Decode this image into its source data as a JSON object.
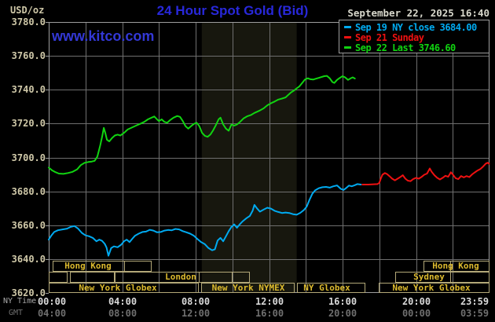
{
  "header": {
    "unit_label": "USD/oz",
    "datetime": "September 22, 2025 16:40"
  },
  "watermark": "www.kitco.com",
  "colors": {
    "background": "#000000",
    "title": "#2828da",
    "watermark": "#3338d6",
    "date_text": "#d8d8cc",
    "axis_text": "#cfc8a8",
    "grid": "#6f6f6f",
    "plot_border": "#9e9e9e",
    "shaded_band": "#17170e",
    "session_text": "#dcba2e",
    "session_border": "#b3a878",
    "ny_time_text": "#d9d9d9",
    "gmt_text": "#6f6f6f",
    "axis_row_label": "#a8a8a8"
  },
  "legend": {
    "items": [
      {
        "label": "Sep 19 NY close 3684.00",
        "color": "#00aaf0"
      },
      {
        "label": "Sep 21 Sunday",
        "color": "#ee1111"
      },
      {
        "label": "Sep 22 Last 3746.60",
        "color": "#11d411"
      }
    ]
  },
  "axes": {
    "y": {
      "unit": "USD/oz",
      "min": 3620,
      "max": 3780,
      "tick_step": 20,
      "tick_labels": [
        "3780.0",
        "3760.0",
        "3740.0",
        "3720.0",
        "3700.0",
        "3680.0",
        "3660.0",
        "3640.0",
        "3620.0"
      ]
    },
    "x": {
      "row1_label": "NY Time",
      "row2_label": "GMT",
      "tick_hours": [
        0,
        4,
        8,
        12,
        16,
        20,
        23.983
      ],
      "ny_labels": [
        "00:00",
        "04:00",
        "08:00",
        "12:00",
        "16:00",
        "20:00",
        "23:59"
      ],
      "gmt_labels": [
        "04:00",
        "08:00",
        "12:00",
        "16:00",
        "20:00",
        "00:00",
        "03:59"
      ],
      "grid_hour_step": 2
    }
  },
  "chart_data": {
    "type": "line",
    "title": "24 Hour Spot Gold (Bid)",
    "xlabel": "NY Time (hours 00:00-23:59)",
    "ylabel": "USD/oz",
    "xlim": [
      0,
      24
    ],
    "ylim": [
      3620,
      3780
    ],
    "grid": true,
    "legend_position": "top-right",
    "shaded_region": {
      "start_hour": 8.333,
      "end_hour": 13.5,
      "note": "New York NYMEX floor session"
    },
    "series": [
      {
        "name": "Sep 19 NY close 3684.00",
        "color": "#00aaf0",
        "points": [
          [
            0.0,
            3651.5
          ],
          [
            0.15,
            3654.0
          ],
          [
            0.3,
            3656.0
          ],
          [
            0.5,
            3657.0
          ],
          [
            0.75,
            3657.5
          ],
          [
            1.0,
            3658.0
          ],
          [
            1.2,
            3659.0
          ],
          [
            1.4,
            3659.5
          ],
          [
            1.6,
            3658.0
          ],
          [
            1.8,
            3655.5
          ],
          [
            2.0,
            3654.0
          ],
          [
            2.2,
            3653.5
          ],
          [
            2.4,
            3652.5
          ],
          [
            2.6,
            3650.5
          ],
          [
            2.75,
            3651.5
          ],
          [
            2.9,
            3650.8
          ],
          [
            3.05,
            3649.0
          ],
          [
            3.15,
            3646.8
          ],
          [
            3.25,
            3642.0
          ],
          [
            3.4,
            3646.5
          ],
          [
            3.55,
            3647.5
          ],
          [
            3.75,
            3647.0
          ],
          [
            3.95,
            3648.5
          ],
          [
            4.1,
            3650.5
          ],
          [
            4.25,
            3651.5
          ],
          [
            4.4,
            3650.0
          ],
          [
            4.55,
            3652.0
          ],
          [
            4.7,
            3653.8
          ],
          [
            4.9,
            3655.0
          ],
          [
            5.1,
            3656.0
          ],
          [
            5.3,
            3656.2
          ],
          [
            5.5,
            3657.3
          ],
          [
            5.7,
            3656.8
          ],
          [
            5.9,
            3655.8
          ],
          [
            6.1,
            3656.0
          ],
          [
            6.3,
            3656.8
          ],
          [
            6.5,
            3657.2
          ],
          [
            6.7,
            3657.0
          ],
          [
            6.9,
            3657.8
          ],
          [
            7.1,
            3657.5
          ],
          [
            7.3,
            3656.5
          ],
          [
            7.5,
            3655.8
          ],
          [
            7.7,
            3655.0
          ],
          [
            7.9,
            3653.8
          ],
          [
            8.1,
            3651.8
          ],
          [
            8.3,
            3650.0
          ],
          [
            8.5,
            3648.8
          ],
          [
            8.7,
            3646.5
          ],
          [
            8.9,
            3645.2
          ],
          [
            9.05,
            3645.8
          ],
          [
            9.2,
            3651.0
          ],
          [
            9.35,
            3652.5
          ],
          [
            9.5,
            3650.5
          ],
          [
            9.65,
            3653.5
          ],
          [
            9.8,
            3656.5
          ],
          [
            9.95,
            3659.0
          ],
          [
            10.1,
            3660.5
          ],
          [
            10.25,
            3658.5
          ],
          [
            10.4,
            3660.5
          ],
          [
            10.55,
            3662.2
          ],
          [
            10.75,
            3664.0
          ],
          [
            10.95,
            3665.5
          ],
          [
            11.1,
            3668.5
          ],
          [
            11.2,
            3672.0
          ],
          [
            11.35,
            3669.8
          ],
          [
            11.5,
            3668.0
          ],
          [
            11.7,
            3669.2
          ],
          [
            11.9,
            3670.3
          ],
          [
            12.1,
            3669.8
          ],
          [
            12.3,
            3668.5
          ],
          [
            12.5,
            3667.8
          ],
          [
            12.7,
            3667.2
          ],
          [
            12.9,
            3667.5
          ],
          [
            13.1,
            3667.2
          ],
          [
            13.3,
            3666.5
          ],
          [
            13.5,
            3666.2
          ],
          [
            13.7,
            3667.3
          ],
          [
            13.9,
            3669.0
          ],
          [
            14.05,
            3671.0
          ],
          [
            14.2,
            3675.0
          ],
          [
            14.35,
            3678.5
          ],
          [
            14.5,
            3680.5
          ],
          [
            14.7,
            3681.8
          ],
          [
            14.9,
            3682.4
          ],
          [
            15.1,
            3682.6
          ],
          [
            15.3,
            3682.2
          ],
          [
            15.5,
            3683.0
          ],
          [
            15.7,
            3683.5
          ],
          [
            15.9,
            3681.5
          ],
          [
            16.05,
            3680.8
          ],
          [
            16.2,
            3682.0
          ],
          [
            16.35,
            3683.4
          ],
          [
            16.5,
            3683.0
          ],
          [
            16.65,
            3683.6
          ],
          [
            16.8,
            3684.3
          ],
          [
            17.0,
            3684.0
          ]
        ]
      },
      {
        "name": "Sep 21 Sunday",
        "color": "#ee1111",
        "points": [
          [
            17.08,
            3684.0
          ],
          [
            17.4,
            3684.0
          ],
          [
            17.7,
            3684.2
          ],
          [
            17.9,
            3684.3
          ],
          [
            18.0,
            3685.0
          ],
          [
            18.08,
            3687.5
          ],
          [
            18.17,
            3689.8
          ],
          [
            18.3,
            3690.8
          ],
          [
            18.42,
            3690.2
          ],
          [
            18.55,
            3689.0
          ],
          [
            18.7,
            3687.5
          ],
          [
            18.85,
            3686.5
          ],
          [
            19.0,
            3687.5
          ],
          [
            19.15,
            3688.5
          ],
          [
            19.28,
            3689.5
          ],
          [
            19.42,
            3687.5
          ],
          [
            19.55,
            3686.3
          ],
          [
            19.7,
            3686.0
          ],
          [
            19.85,
            3687.3
          ],
          [
            20.0,
            3688.0
          ],
          [
            20.15,
            3687.5
          ],
          [
            20.3,
            3688.5
          ],
          [
            20.45,
            3689.8
          ],
          [
            20.6,
            3690.5
          ],
          [
            20.75,
            3693.5
          ],
          [
            20.85,
            3691.5
          ],
          [
            21.0,
            3689.5
          ],
          [
            21.15,
            3688.0
          ],
          [
            21.3,
            3687.0
          ],
          [
            21.45,
            3688.0
          ],
          [
            21.6,
            3689.2
          ],
          [
            21.75,
            3688.6
          ],
          [
            21.9,
            3691.3
          ],
          [
            22.0,
            3690.0
          ],
          [
            22.15,
            3687.8
          ],
          [
            22.3,
            3687.2
          ],
          [
            22.45,
            3689.0
          ],
          [
            22.6,
            3688.2
          ],
          [
            22.75,
            3689.0
          ],
          [
            22.9,
            3688.4
          ],
          [
            23.05,
            3690.0
          ],
          [
            23.2,
            3691.2
          ],
          [
            23.35,
            3692.3
          ],
          [
            23.5,
            3693.2
          ],
          [
            23.65,
            3694.6
          ],
          [
            23.8,
            3696.4
          ],
          [
            23.9,
            3696.9
          ],
          [
            23.98,
            3696.2
          ]
        ]
      },
      {
        "name": "Sep 22 Last 3746.60",
        "color": "#11d411",
        "points": [
          [
            0.0,
            3694.0
          ],
          [
            0.17,
            3692.5
          ],
          [
            0.33,
            3691.5
          ],
          [
            0.55,
            3690.5
          ],
          [
            0.8,
            3690.3
          ],
          [
            1.05,
            3690.8
          ],
          [
            1.3,
            3691.5
          ],
          [
            1.55,
            3693.0
          ],
          [
            1.75,
            3695.5
          ],
          [
            1.95,
            3696.8
          ],
          [
            2.15,
            3697.3
          ],
          [
            2.35,
            3697.6
          ],
          [
            2.5,
            3698.0
          ],
          [
            2.65,
            3700.5
          ],
          [
            2.8,
            3707.0
          ],
          [
            2.92,
            3713.0
          ],
          [
            3.0,
            3717.5
          ],
          [
            3.08,
            3714.5
          ],
          [
            3.17,
            3710.5
          ],
          [
            3.3,
            3709.5
          ],
          [
            3.45,
            3711.5
          ],
          [
            3.6,
            3713.0
          ],
          [
            3.75,
            3713.5
          ],
          [
            3.9,
            3713.0
          ],
          [
            4.1,
            3714.5
          ],
          [
            4.3,
            3716.5
          ],
          [
            4.55,
            3717.8
          ],
          [
            4.8,
            3719.0
          ],
          [
            5.0,
            3720.0
          ],
          [
            5.2,
            3721.0
          ],
          [
            5.4,
            3722.5
          ],
          [
            5.6,
            3723.5
          ],
          [
            5.75,
            3724.2
          ],
          [
            5.9,
            3722.5
          ],
          [
            6.0,
            3721.5
          ],
          [
            6.15,
            3722.5
          ],
          [
            6.3,
            3721.0
          ],
          [
            6.45,
            3720.5
          ],
          [
            6.6,
            3722.0
          ],
          [
            6.8,
            3723.5
          ],
          [
            7.0,
            3724.5
          ],
          [
            7.15,
            3724.0
          ],
          [
            7.3,
            3721.5
          ],
          [
            7.45,
            3718.5
          ],
          [
            7.6,
            3717.0
          ],
          [
            7.75,
            3718.5
          ],
          [
            7.9,
            3719.8
          ],
          [
            8.05,
            3720.5
          ],
          [
            8.2,
            3718.5
          ],
          [
            8.35,
            3714.5
          ],
          [
            8.5,
            3712.8
          ],
          [
            8.65,
            3712.2
          ],
          [
            8.8,
            3713.5
          ],
          [
            8.95,
            3716.0
          ],
          [
            9.1,
            3719.0
          ],
          [
            9.25,
            3722.5
          ],
          [
            9.35,
            3723.5
          ],
          [
            9.5,
            3719.5
          ],
          [
            9.65,
            3717.0
          ],
          [
            9.8,
            3715.8
          ],
          [
            9.95,
            3719.5
          ],
          [
            10.1,
            3718.8
          ],
          [
            10.25,
            3719.5
          ],
          [
            10.4,
            3720.8
          ],
          [
            10.6,
            3723.0
          ],
          [
            10.8,
            3724.3
          ],
          [
            11.0,
            3725.0
          ],
          [
            11.2,
            3726.3
          ],
          [
            11.45,
            3727.5
          ],
          [
            11.7,
            3729.0
          ],
          [
            11.9,
            3730.8
          ],
          [
            12.1,
            3732.0
          ],
          [
            12.3,
            3733.0
          ],
          [
            12.5,
            3734.2
          ],
          [
            12.7,
            3734.8
          ],
          [
            12.9,
            3735.5
          ],
          [
            13.05,
            3737.0
          ],
          [
            13.2,
            3738.5
          ],
          [
            13.35,
            3739.5
          ],
          [
            13.5,
            3740.8
          ],
          [
            13.65,
            3742.0
          ],
          [
            13.8,
            3744.0
          ],
          [
            13.95,
            3746.0
          ],
          [
            14.1,
            3746.8
          ],
          [
            14.25,
            3746.2
          ],
          [
            14.4,
            3746.0
          ],
          [
            14.55,
            3746.5
          ],
          [
            14.7,
            3747.0
          ],
          [
            14.85,
            3747.5
          ],
          [
            15.0,
            3748.0
          ],
          [
            15.15,
            3748.2
          ],
          [
            15.3,
            3746.8
          ],
          [
            15.45,
            3744.5
          ],
          [
            15.55,
            3744.0
          ],
          [
            15.7,
            3745.8
          ],
          [
            15.85,
            3747.0
          ],
          [
            16.0,
            3748.0
          ],
          [
            16.15,
            3747.2
          ],
          [
            16.3,
            3745.8
          ],
          [
            16.45,
            3746.8
          ],
          [
            16.55,
            3747.3
          ],
          [
            16.67,
            3746.6
          ]
        ]
      }
    ]
  },
  "sessions": {
    "rows": [
      {
        "boxes": [
          {
            "label": "Hong Kong",
            "start_h": 0.21,
            "end_h": 5.6,
            "dividers_h": [
              4.11
            ],
            "label_center_h": 2.16
          },
          {
            "label": "Hong Kong",
            "start_h": 20.4,
            "end_h": 24.0,
            "dividers_h": [
              21.86
            ],
            "label_center_h": 22.15
          }
        ]
      },
      {
        "boxes": [
          {
            "label": "",
            "start_h": 0.0,
            "end_h": 1.03
          },
          {
            "label": "",
            "start_h": 1.16,
            "end_h": 3.59
          },
          {
            "label": "London",
            "start_h": 3.59,
            "end_h": 10.95,
            "dividers_h": [
              8.17,
              9.97
            ],
            "label_center_h": 7.19
          },
          {
            "label": "Sydney",
            "start_h": 18.87,
            "end_h": 24.0,
            "dividers_h": [
              21.86
            ],
            "label_center_h": 20.72
          }
        ]
      },
      {
        "boxes": [
          {
            "label": "New York Globex",
            "start_h": 0.0,
            "end_h": 8.17,
            "label_center_h": 3.76
          },
          {
            "label": "New York NYMEX",
            "start_h": 8.3,
            "end_h": 13.39,
            "label_center_h": 10.85
          },
          {
            "label": "NY Globex",
            "start_h": 13.52,
            "end_h": 17.24,
            "label_center_h": 15.15
          },
          {
            "label": "New York Globex",
            "start_h": 17.97,
            "end_h": 24.0,
            "label_center_h": 20.85
          }
        ]
      }
    ]
  }
}
